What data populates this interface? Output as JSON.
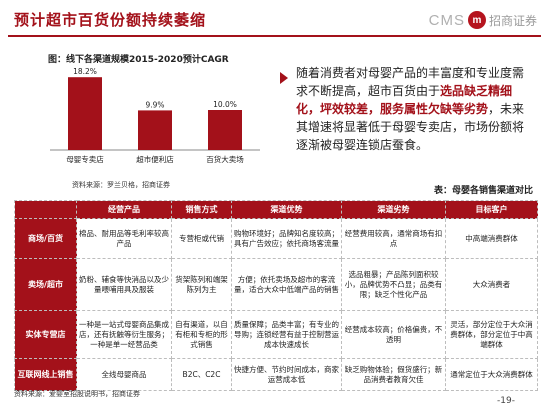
{
  "header": {
    "title": "预计超市百货份额持续萎缩",
    "brand_cms": "CMS",
    "brand_logo_glyph": "m",
    "brand_name": "招商证券"
  },
  "chart": {
    "caption": "图：线下各渠道规模2015-2020预计CAGR",
    "source": "资料来源：罗兰贝格，招商证券"
  },
  "chart_data": {
    "type": "bar",
    "title": "图：线下各渠道规模2015-2020预计CAGR",
    "categories": [
      "母婴专卖店",
      "超市便利店",
      "百货大卖场"
    ],
    "values": [
      18.2,
      9.9,
      10.0
    ],
    "value_labels": [
      "18.2%",
      "9.9%",
      "10.0%"
    ],
    "ylim": [
      0,
      20
    ],
    "bar_color": "#a3111a",
    "grid": false
  },
  "bullet": {
    "part1": "随着消费者对母婴产品的丰富度和专业度需求不断提高，超市百货由于",
    "highlight": "选品缺乏精细化，坪效较差，服务属性欠缺等劣势",
    "part2": "，未来其增速将显著低于母婴专卖店，市场份额将逐渐被母婴连锁店蚕食。"
  },
  "table": {
    "title": "表：母婴各销售渠道对比",
    "headers": [
      "",
      "经营产品",
      "销售方式",
      "渠道优势",
      "渠道劣势",
      "目标客户"
    ],
    "rows": [
      {
        "name": "商场/百货",
        "cells": [
          "棉品、耐用品等毛利率较高产品",
          "专营柜或代销",
          "购物环境好；品牌知名度较高；具有广告效应；依托商场客流量",
          "经营费用较高，通常商场有扣点",
          "中高端消费群体"
        ]
      },
      {
        "name": "卖场/超市",
        "cells": [
          "奶粉、辅食等快消品以及少量喂哺用具及服装",
          "货架陈列和端架陈列为主",
          "方便；依托卖场及超市的客流量，适合大众中低端产品的销售",
          "选品粗暴；产品陈列面积较小，品牌优势不凸显；品类有限；缺乏个性化产品",
          "大众消费者"
        ]
      },
      {
        "name": "实体专营店",
        "cells": [
          "一种是一站式母婴商品集成店，还有抚触等衍生服务；一种是单一经营品类",
          "自有渠道，以自有柜和专柜的形式销售",
          "质量保障；品类丰富；有专业的导购；连锁经营有益于控制营运成本快速成长",
          "经营成本较高；价格偏贵，不透明",
          "灵活，部分定位于大众消费群体，部分定位于中高端群体"
        ]
      },
      {
        "name": "互联网线上销售",
        "cells": [
          "全线母婴商品",
          "B2C、C2C",
          "快捷方便、节约时间成本，商家运营成本低",
          "缺乏购物体验；假货盛行；新品消费者教育欠佳",
          "通常定位于大众消费群体"
        ]
      }
    ]
  },
  "footer": {
    "source": "资料来源：爱婴室招股说明书，招商证券",
    "page": "-19-"
  }
}
